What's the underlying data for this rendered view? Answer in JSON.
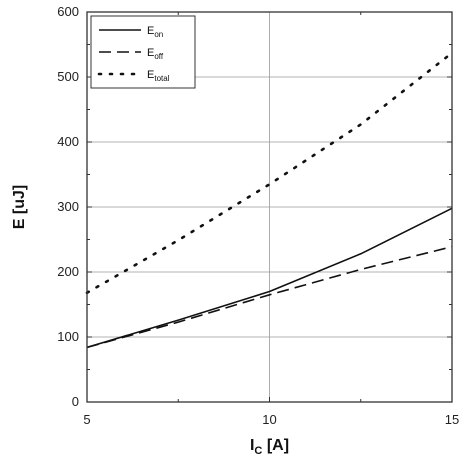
{
  "chart_data": {
    "type": "line",
    "title": "",
    "xlabel": {
      "main": "I",
      "sub": "C",
      "rest": " [A]"
    },
    "ylabel": "E [uJ]",
    "xlim": [
      5,
      15
    ],
    "ylim": [
      0,
      600
    ],
    "x_ticks": [
      5,
      10,
      15
    ],
    "y_ticks": [
      0,
      100,
      200,
      300,
      400,
      500,
      600
    ],
    "grid": true,
    "legend_position": "top-left",
    "x": [
      5,
      7.5,
      10,
      12.5,
      15
    ],
    "series": [
      {
        "name": "E",
        "sub": "on",
        "style": "solid",
        "values": [
          84,
          126,
          170,
          228,
          298
        ]
      },
      {
        "name": "E",
        "sub": "off",
        "style": "dashed",
        "values": [
          84,
          123,
          165,
          204,
          239
        ]
      },
      {
        "name": "E",
        "sub": "total",
        "style": "dotted",
        "values": [
          168,
          249,
          335,
          427,
          537
        ]
      }
    ]
  }
}
